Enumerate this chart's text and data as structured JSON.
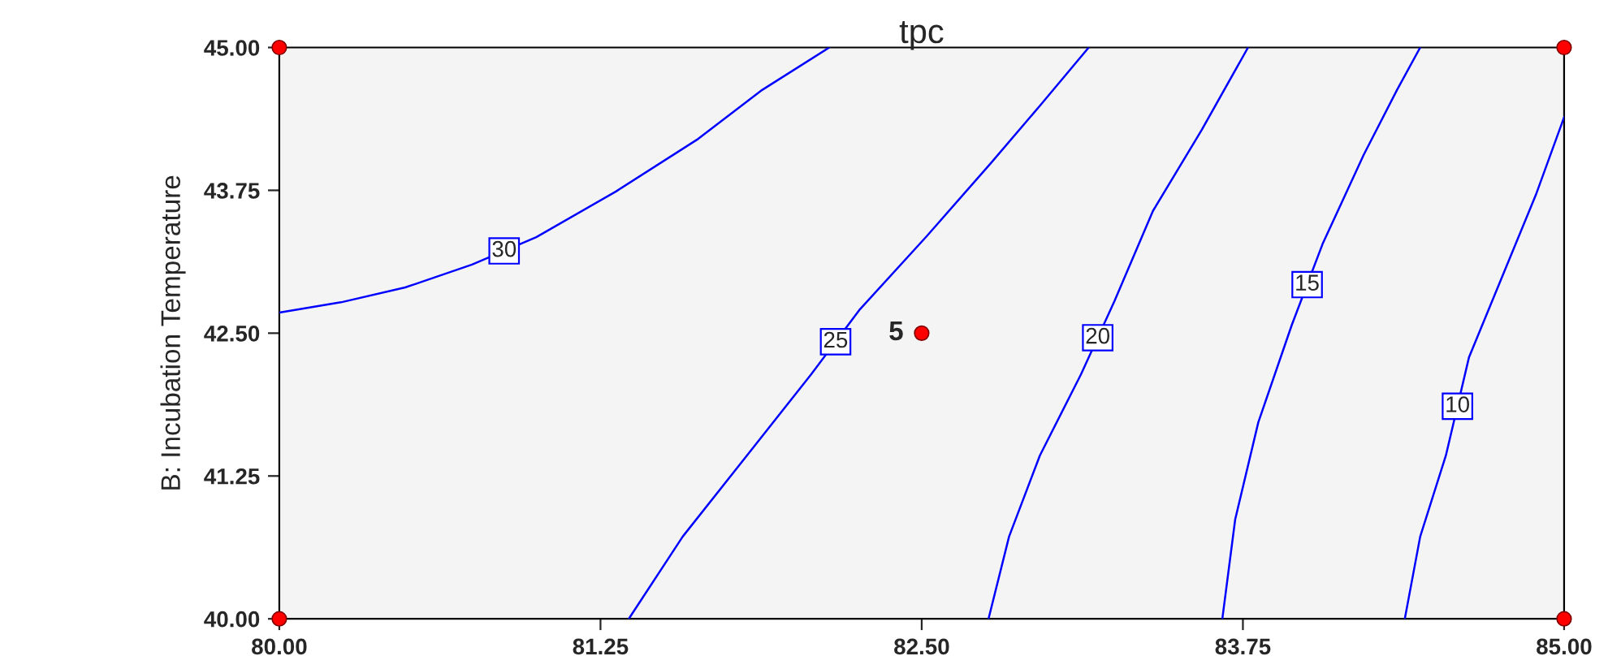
{
  "chart_data": {
    "type": "line",
    "title": "tpc",
    "ylabel": "B: Incubation Temperature",
    "series": [
      {
        "name": "30",
        "color": "#0000ff",
        "x": [
          80,
          80.24,
          80.49,
          80.75,
          81.0,
          81.31,
          81.63,
          81.88,
          82.14
        ],
        "values": [
          42.68,
          42.77,
          42.9,
          43.1,
          43.34,
          43.74,
          44.2,
          44.63,
          45
        ]
      },
      {
        "name": "25",
        "color": "#0000ff",
        "x": [
          81.36,
          81.57,
          81.82,
          82.07,
          82.26,
          82.52,
          82.77,
          82.96,
          83.15
        ],
        "values": [
          40,
          40.72,
          41.43,
          42.14,
          42.71,
          43.35,
          43.99,
          44.49,
          45
        ]
      },
      {
        "name": "20",
        "color": "#0000ff",
        "x": [
          82.76,
          82.84,
          82.96,
          83.12,
          83.25,
          83.4,
          83.59,
          83.77
        ],
        "values": [
          40,
          40.72,
          41.43,
          42.14,
          42.78,
          43.57,
          44.28,
          45
        ]
      },
      {
        "name": "15",
        "color": "#0000ff",
        "x": [
          83.67,
          83.72,
          83.81,
          83.94,
          84.06,
          84.22,
          84.35,
          84.44
        ],
        "values": [
          40,
          40.87,
          41.72,
          42.57,
          43.28,
          44.06,
          44.63,
          45
        ]
      },
      {
        "name": "10",
        "color": "#0000ff",
        "x": [
          84.38,
          84.44,
          84.54,
          84.63,
          84.76,
          84.89,
          85
        ],
        "values": [
          40,
          40.72,
          41.43,
          42.29,
          43.0,
          43.71,
          44.39
        ]
      },
      {
        "type": "scatter",
        "color": "#ff0000",
        "marker": "circle",
        "x": [
          80,
          85,
          80,
          85,
          82.5
        ],
        "values": [
          40,
          40,
          45,
          45,
          42.5
        ]
      }
    ],
    "annotations": [
      {
        "text": "5",
        "x": 82.5,
        "y": 42.5
      }
    ],
    "xlim": [
      80,
      85
    ],
    "ylim": [
      40,
      45
    ],
    "xticks": [
      {
        "value": 80,
        "label": "80.00"
      },
      {
        "value": 81.25,
        "label": "81.25"
      },
      {
        "value": 82.5,
        "label": "82.50"
      },
      {
        "value": 83.75,
        "label": "83.75"
      },
      {
        "value": 85,
        "label": "85.00"
      }
    ],
    "yticks": [
      {
        "value": 40,
        "label": "40.00"
      },
      {
        "value": 41.25,
        "label": "41.25"
      },
      {
        "value": 42.5,
        "label": "42.50"
      },
      {
        "value": 43.75,
        "label": "43.75"
      },
      {
        "value": 45,
        "label": "45.00"
      }
    ],
    "grid": false,
    "legend": false
  }
}
